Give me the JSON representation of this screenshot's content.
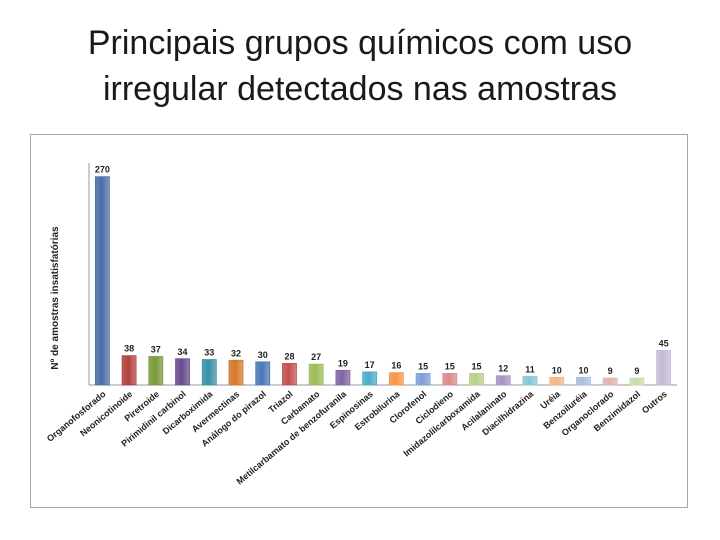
{
  "slide": {
    "title_line1": "Principais grupos químicos com uso",
    "title_line2": "irregular detectados nas amostras"
  },
  "chart_data": {
    "type": "bar",
    "title": "",
    "xlabel": "",
    "ylabel": "Nº de amostras insatisfatórias",
    "ylim": [
      0,
      280
    ],
    "grid": false,
    "legend": "none",
    "categories": [
      "Organofosforado",
      "Neonicotinoide",
      "Piretroide",
      "Pirimidinil carbinol",
      "Dicarboximida",
      "Avermectinas",
      "Análogo do pirazol",
      "Triazol",
      "Carbamato",
      "Metilcarbamato de benzofuranila",
      "Espinosinas",
      "Estrobilurina",
      "Clorofenol",
      "Ciclodieno",
      "Imidazolilcarboxamida",
      "Acilalaninato",
      "Diacilhidrazina",
      "Uréia",
      "Benzoiluréia",
      "Organoclorado",
      "Benzimidazol",
      "Outros"
    ],
    "values": [
      270,
      38,
      37,
      34,
      33,
      32,
      30,
      28,
      27,
      19,
      17,
      16,
      15,
      15,
      15,
      12,
      11,
      10,
      10,
      9,
      9,
      45
    ],
    "colors": [
      "#4a6fa5",
      "#b0413e",
      "#7a9a3a",
      "#6a4a8e",
      "#3a8fa8",
      "#d4782c",
      "#4a78b8",
      "#c0504d",
      "#9bbb59",
      "#8064a2",
      "#4bacc6",
      "#f79646",
      "#7f9fd4",
      "#d98c8a",
      "#b8d08a",
      "#a895c2",
      "#86c6d9",
      "#f7b585",
      "#a9bde0",
      "#e4b1b0",
      "#c9dca6",
      "#c6bbd7"
    ]
  }
}
